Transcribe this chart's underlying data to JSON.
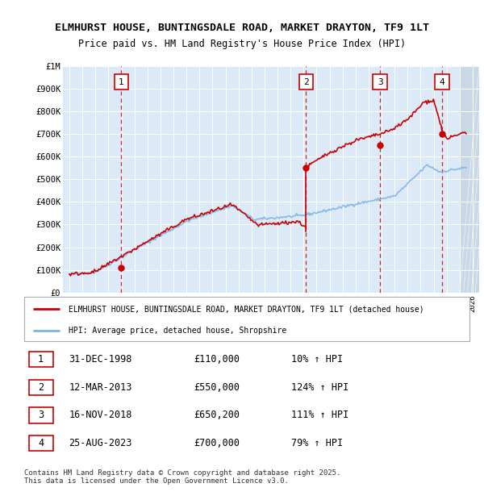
{
  "title1": "ELMHURST HOUSE, BUNTINGSDALE ROAD, MARKET DRAYTON, TF9 1LT",
  "title2": "Price paid vs. HM Land Registry's House Price Index (HPI)",
  "background_color": "#dce9f7",
  "line1_color": "#cc0000",
  "line2_color": "#7db4e6",
  "sale_points": [
    {
      "num": 1,
      "year": 1998.99,
      "price": 110000,
      "label": "31-DEC-1998",
      "pct": "10%"
    },
    {
      "num": 2,
      "year": 2013.19,
      "price": 550000,
      "label": "12-MAR-2013",
      "pct": "124%"
    },
    {
      "num": 3,
      "year": 2018.88,
      "price": 650200,
      "label": "16-NOV-2018",
      "pct": "111%"
    },
    {
      "num": 4,
      "year": 2023.65,
      "price": 700000,
      "label": "25-AUG-2023",
      "pct": "79%"
    }
  ],
  "legend1": "ELMHURST HOUSE, BUNTINGSDALE ROAD, MARKET DRAYTON, TF9 1LT (detached house)",
  "legend2": "HPI: Average price, detached house, Shropshire",
  "footer": "Contains HM Land Registry data © Crown copyright and database right 2025.\nThis data is licensed under the Open Government Licence v3.0.",
  "ylim": [
    0,
    1000000
  ],
  "xlim_start": 1994.5,
  "xlim_end": 2026.5,
  "yticks": [
    0,
    100000,
    200000,
    300000,
    400000,
    500000,
    600000,
    700000,
    800000,
    900000,
    1000000
  ],
  "ylabels": [
    "£0",
    "£100K",
    "£200K",
    "£300K",
    "£400K",
    "£500K",
    "£600K",
    "£700K",
    "£800K",
    "£900K",
    "£1M"
  ]
}
